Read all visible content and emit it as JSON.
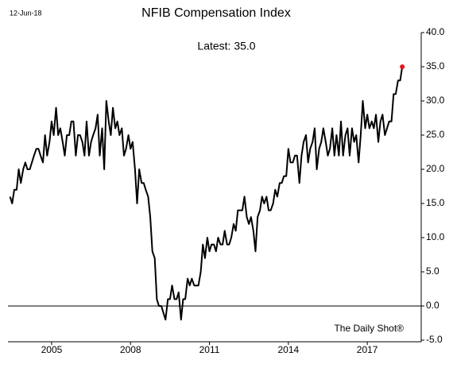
{
  "chart_data": {
    "type": "line",
    "title": "NFIB Compensation Index",
    "date": "12-Jun-18",
    "annotation": "Latest:  35.0",
    "source": "The Daily Shot®",
    "x": [
      2003.42,
      2003.5,
      2003.58,
      2003.67,
      2003.75,
      2003.83,
      2003.92,
      2004,
      2004.08,
      2004.17,
      2004.25,
      2004.33,
      2004.42,
      2004.5,
      2004.58,
      2004.67,
      2004.75,
      2004.83,
      2004.92,
      2005,
      2005.08,
      2005.17,
      2005.25,
      2005.33,
      2005.42,
      2005.5,
      2005.58,
      2005.67,
      2005.75,
      2005.83,
      2005.92,
      2006,
      2006.08,
      2006.17,
      2006.25,
      2006.33,
      2006.42,
      2006.5,
      2006.58,
      2006.67,
      2006.75,
      2006.83,
      2006.92,
      2007,
      2007.08,
      2007.17,
      2007.25,
      2007.33,
      2007.42,
      2007.5,
      2007.58,
      2007.67,
      2007.75,
      2007.83,
      2007.92,
      2008,
      2008.08,
      2008.17,
      2008.25,
      2008.33,
      2008.42,
      2008.5,
      2008.58,
      2008.67,
      2008.75,
      2008.83,
      2008.92,
      2009,
      2009.08,
      2009.17,
      2009.25,
      2009.33,
      2009.42,
      2009.5,
      2009.58,
      2009.67,
      2009.75,
      2009.83,
      2009.92,
      2010,
      2010.08,
      2010.17,
      2010.25,
      2010.33,
      2010.42,
      2010.5,
      2010.58,
      2010.67,
      2010.75,
      2010.83,
      2010.92,
      2011,
      2011.08,
      2011.17,
      2011.25,
      2011.33,
      2011.42,
      2011.5,
      2011.58,
      2011.67,
      2011.75,
      2011.83,
      2011.92,
      2012,
      2012.08,
      2012.17,
      2012.25,
      2012.33,
      2012.42,
      2012.5,
      2012.58,
      2012.67,
      2012.75,
      2012.83,
      2012.92,
      2013,
      2013.08,
      2013.17,
      2013.25,
      2013.33,
      2013.42,
      2013.5,
      2013.58,
      2013.67,
      2013.75,
      2013.83,
      2013.92,
      2014,
      2014.08,
      2014.17,
      2014.25,
      2014.33,
      2014.42,
      2014.5,
      2014.58,
      2014.67,
      2014.75,
      2014.83,
      2014.92,
      2015,
      2015.08,
      2015.17,
      2015.25,
      2015.33,
      2015.42,
      2015.5,
      2015.58,
      2015.67,
      2015.75,
      2015.83,
      2015.92,
      2016,
      2016.08,
      2016.17,
      2016.25,
      2016.33,
      2016.42,
      2016.5,
      2016.58,
      2016.67,
      2016.75,
      2016.83,
      2016.92,
      2017,
      2017.08,
      2017.17,
      2017.25,
      2017.33,
      2017.42,
      2017.5,
      2017.58,
      2017.67,
      2017.75,
      2017.83,
      2017.92,
      2018,
      2018.08,
      2018.17,
      2018.25,
      2018.33
    ],
    "series": [
      {
        "color": "#000000",
        "marker_color": "#e8141b",
        "values": [
          16,
          15,
          17,
          17,
          20,
          18,
          20,
          21,
          20,
          20,
          21,
          22,
          23,
          23,
          22,
          21,
          25,
          22,
          24,
          27,
          25,
          29,
          25,
          26,
          24,
          22,
          25,
          25,
          27,
          27,
          22,
          25,
          25,
          24,
          22,
          27,
          22,
          24,
          25,
          26,
          28,
          22,
          26,
          20,
          30,
          27,
          25,
          29,
          26,
          27,
          25,
          26,
          22,
          23,
          25,
          23,
          24,
          20,
          15,
          20,
          18,
          18,
          17,
          16,
          13,
          8,
          7,
          1,
          0,
          0,
          -1,
          -2,
          1,
          1,
          3,
          1,
          1,
          2,
          -2,
          1,
          1,
          4,
          3,
          4,
          3,
          3,
          3,
          5,
          9,
          7,
          10,
          8,
          9,
          9,
          8,
          10,
          9,
          9,
          11,
          9,
          9,
          10,
          12,
          11,
          14,
          14,
          14,
          16,
          13,
          12,
          13,
          11,
          8,
          13,
          14,
          16,
          15,
          16,
          14,
          14,
          15,
          17,
          16,
          18,
          18,
          19,
          19,
          23,
          21,
          21,
          22,
          22,
          18,
          22,
          24,
          25,
          21,
          23,
          24,
          26,
          20,
          23,
          24,
          26,
          24,
          22,
          23,
          26,
          22,
          25,
          22,
          27,
          22,
          25,
          26,
          22,
          26,
          24,
          25,
          21,
          25,
          30,
          26,
          28,
          26,
          27,
          26,
          28,
          24,
          27,
          28,
          25,
          26,
          27,
          27,
          31,
          31,
          33,
          33,
          35
        ]
      }
    ],
    "xlim": [
      2003.34,
      2019.05
    ],
    "xticks": [
      2005,
      2008,
      2011,
      2014,
      2017
    ],
    "ylim": [
      -5,
      40
    ],
    "yticks": [
      {
        "value": -5,
        "label": "-5.0"
      },
      {
        "value": 0,
        "label": "0.0"
      },
      {
        "value": 5,
        "label": "5.0"
      },
      {
        "value": 10,
        "label": "10.0"
      },
      {
        "value": 15,
        "label": "15.0"
      },
      {
        "value": 20,
        "label": "20.0"
      },
      {
        "value": 25,
        "label": "25.0"
      },
      {
        "value": 30,
        "label": "30.0"
      },
      {
        "value": 35,
        "label": "35.0"
      },
      {
        "value": 40,
        "label": "40.0"
      }
    ],
    "zero_line": 0
  }
}
